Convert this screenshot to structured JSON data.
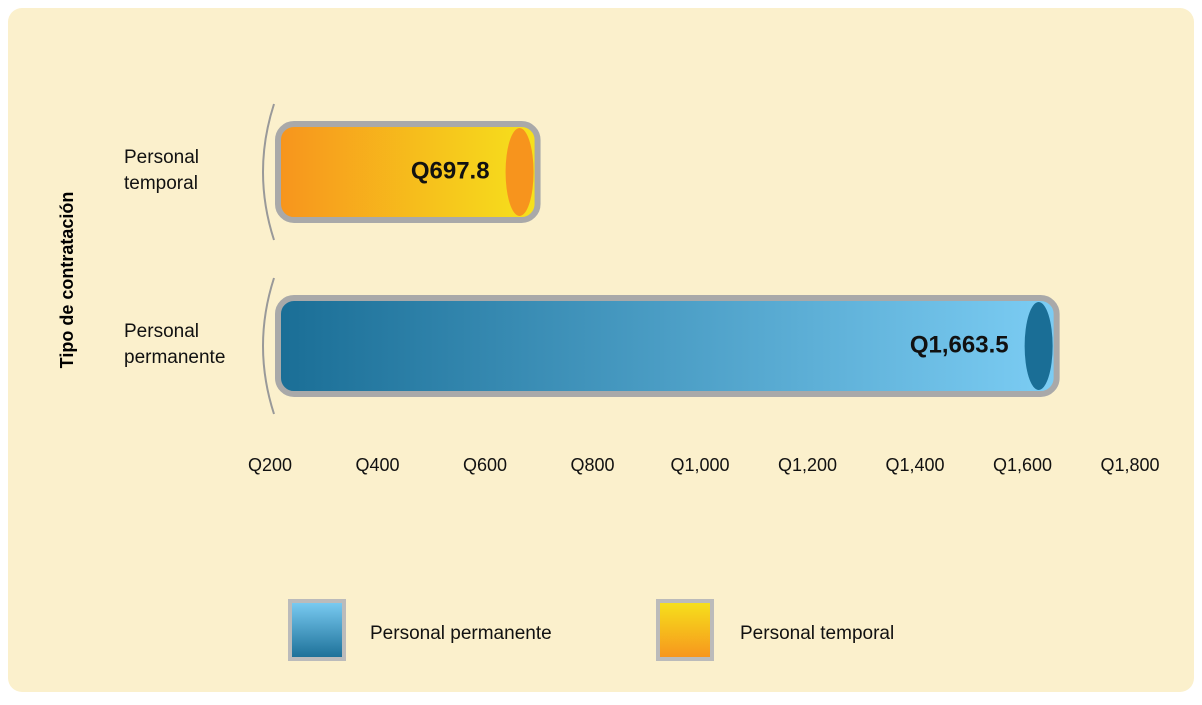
{
  "chart_data": {
    "type": "bar",
    "orientation": "horizontal",
    "y_axis_label": "Tipo de contratación",
    "categories": [
      "Personal temporal",
      "Personal permanente"
    ],
    "values": [
      697.8,
      1663.5
    ],
    "value_labels": [
      "Q697.8",
      "Q1,663.5"
    ],
    "colors": [
      [
        "#f7941d",
        "#f6e21c"
      ],
      [
        "#1a6e96",
        "#7ccdf4"
      ]
    ],
    "xlim": [
      200,
      1800
    ],
    "xticks": [
      {
        "value": 200,
        "label": "Q200"
      },
      {
        "value": 400,
        "label": "Q400"
      },
      {
        "value": 600,
        "label": "Q600"
      },
      {
        "value": 800,
        "label": "Q800"
      },
      {
        "value": 1000,
        "label": "Q1,000"
      },
      {
        "value": 1200,
        "label": "Q1,200"
      },
      {
        "value": 1400,
        "label": "Q1,400"
      },
      {
        "value": 1600,
        "label": "Q1,600"
      },
      {
        "value": 1800,
        "label": "Q1,800"
      }
    ],
    "legend": "bottom"
  }
}
